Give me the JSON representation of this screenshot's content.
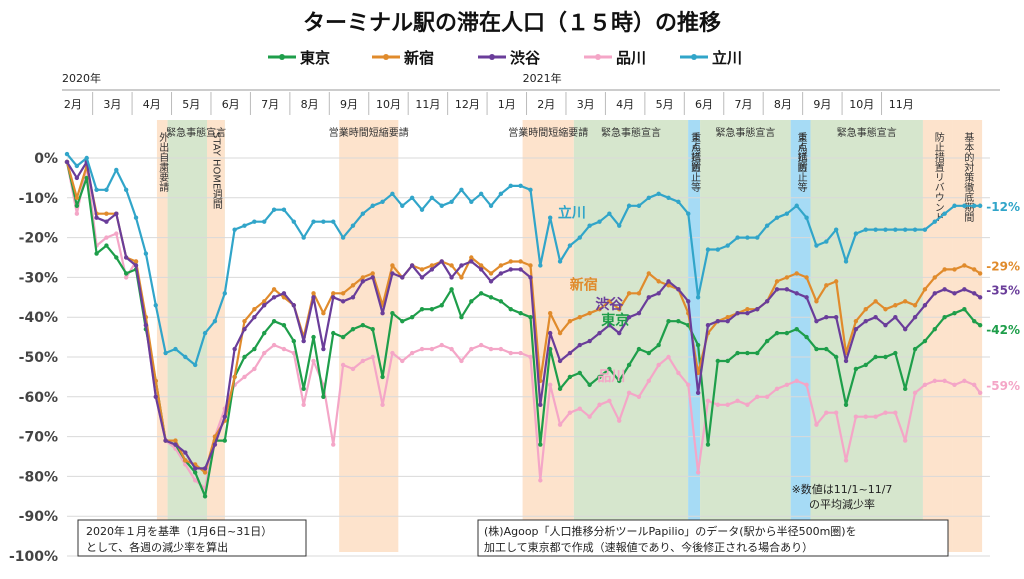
{
  "chart_data": {
    "type": "line",
    "title": "ターミナル駅の滞在人口（１５時）の推移",
    "ylim": [
      -100,
      5
    ],
    "yticks": [
      "0%",
      "-10%",
      "-20%",
      "-30%",
      "-40%",
      "-50%",
      "-60%",
      "-70%",
      "-80%",
      "-90%",
      "-100%"
    ],
    "year_labels": [
      "2020年",
      "2021年"
    ],
    "months": [
      "2月",
      "3月",
      "4月",
      "5月",
      "6月",
      "7月",
      "8月",
      "9月",
      "10月",
      "11月",
      "12月",
      "1月",
      "2月",
      "3月",
      "4月",
      "5月",
      "6月",
      "7月",
      "8月",
      "9月",
      "10月",
      "11月"
    ],
    "grid": true,
    "legend_position": "top",
    "periods": [
      {
        "label": "外出自粛要請",
        "color": "#fde3cc",
        "start": 3.28,
        "end": 3.55,
        "vertical": true
      },
      {
        "label": "緊急事態宣言",
        "color": "#d6e6cd",
        "start": 3.55,
        "end": 5.0,
        "vertical": false
      },
      {
        "label": "STAY HOME週間",
        "color": "#fde3cc",
        "start": 4.55,
        "end": 5.0,
        "vertical": true
      },
      {
        "label": "営業時間短縮要請",
        "color": "#fde3cc",
        "start": 7.9,
        "end": 9.4,
        "vertical": false
      },
      {
        "label": "営業時間短縮要請",
        "color": "#fde3cc",
        "start": 12.55,
        "end": 13.85,
        "vertical": false
      },
      {
        "label": "緊急事態宣言",
        "color": "#d6e6cd",
        "start": 13.85,
        "end": 16.75,
        "vertical": false
      },
      {
        "label": "重点措置",
        "color": "#a6dbf5",
        "start": 16.75,
        "end": 17.05,
        "vertical": true
      },
      {
        "label": "まん延防止等",
        "color": "#a6dbf5",
        "start": 16.75,
        "end": 17.05,
        "vertical": true
      },
      {
        "label": "緊急事態宣言",
        "color": "#d6e6cd",
        "start": 17.05,
        "end": 19.35,
        "vertical": false
      },
      {
        "label": "重点措置",
        "color": "#a6dbf5",
        "start": 19.35,
        "end": 19.85,
        "vertical": true
      },
      {
        "label": "まん延防止等",
        "color": "#a6dbf5",
        "start": 19.35,
        "end": 19.85,
        "vertical": true
      },
      {
        "label": "緊急事態宣言",
        "color": "#d6e6cd",
        "start": 19.85,
        "end": 22.7,
        "vertical": false
      },
      {
        "label": "防止措置リバウンド",
        "color": "#fde3cc",
        "start": 22.7,
        "end": 23.45,
        "vertical": true
      },
      {
        "label": "基本的対策徹底期間",
        "color": "#fde3cc",
        "start": 23.45,
        "end": 24.2,
        "vertical": true
      }
    ],
    "series": [
      {
        "name": "東京",
        "color": "#1e9e4a",
        "label_color": "#1e9e4a",
        "end_label": "-42%",
        "x": [
          1.0,
          1.25,
          1.5,
          1.75,
          2.0,
          2.25,
          2.5,
          2.75,
          3.0,
          3.25,
          3.5,
          3.75,
          4.0,
          4.25,
          4.5,
          4.75,
          5.0,
          5.25,
          5.5,
          5.75,
          6.0,
          6.25,
          6.5,
          6.75,
          7.0,
          7.25,
          7.5,
          7.75,
          8.0,
          8.25,
          8.5,
          8.75,
          9.0,
          9.25,
          9.5,
          9.75,
          10.0,
          10.25,
          10.5,
          10.75,
          11.0,
          11.25,
          11.5,
          11.75,
          12.0,
          12.25,
          12.5,
          12.75,
          13.0,
          13.25,
          13.5,
          13.75,
          14.0,
          14.25,
          14.5,
          14.75,
          15.0,
          15.25,
          15.5,
          15.75,
          16.0,
          16.25,
          16.5,
          16.75,
          17.0,
          17.25,
          17.5,
          17.75,
          18.0,
          18.25,
          18.5,
          18.75,
          19.0,
          19.25,
          19.5,
          19.75,
          20.0,
          20.25,
          20.5,
          20.75,
          21.0,
          21.25,
          21.5,
          21.75,
          22.0,
          22.25,
          22.5,
          22.75,
          23.0,
          23.25,
          23.5,
          23.75,
          24.0,
          24.15
        ],
        "y": [
          -1,
          -12,
          -5,
          -24,
          -22,
          -25,
          -29,
          -28,
          -43,
          -56,
          -71,
          -72,
          -76,
          -79,
          -85,
          -71,
          -71,
          -55,
          -50,
          -48,
          -44,
          -41,
          -42,
          -46,
          -58,
          -45,
          -60,
          -44,
          -45,
          -43,
          -42,
          -43,
          -55,
          -39,
          -41,
          -40,
          -38,
          -38,
          -37,
          -33,
          -40,
          -36,
          -34,
          -35,
          -36,
          -38,
          -39,
          -40,
          -72,
          -48,
          -58,
          -55,
          -54,
          -57,
          -55,
          -53,
          -56,
          -52,
          -48,
          -49,
          -47,
          -41,
          -41,
          -42,
          -47,
          -72,
          -51,
          -51,
          -49,
          -49,
          -49,
          -46,
          -44,
          -44,
          -43,
          -45,
          -48,
          -48,
          -50,
          -62,
          -53,
          -52,
          -50,
          -50,
          -49,
          -58,
          -48,
          -46,
          -43,
          -40,
          -39,
          -38,
          -41,
          -42
        ]
      },
      {
        "name": "新宿",
        "color": "#e08b2c",
        "label_color": "#e08b2c",
        "end_label": "-29%",
        "x": [
          1.0,
          1.25,
          1.5,
          1.75,
          2.0,
          2.25,
          2.5,
          2.75,
          3.0,
          3.25,
          3.5,
          3.75,
          4.0,
          4.25,
          4.5,
          4.75,
          5.0,
          5.25,
          5.5,
          5.75,
          6.0,
          6.25,
          6.5,
          6.75,
          7.0,
          7.25,
          7.5,
          7.75,
          8.0,
          8.25,
          8.5,
          8.75,
          9.0,
          9.25,
          9.5,
          9.75,
          10.0,
          10.25,
          10.5,
          10.75,
          11.0,
          11.25,
          11.5,
          11.75,
          12.0,
          12.25,
          12.5,
          12.75,
          13.0,
          13.25,
          13.5,
          13.75,
          14.0,
          14.25,
          14.5,
          14.75,
          15.0,
          15.25,
          15.5,
          15.75,
          16.0,
          16.25,
          16.5,
          16.75,
          17.0,
          17.25,
          17.5,
          17.75,
          18.0,
          18.25,
          18.5,
          18.75,
          19.0,
          19.25,
          19.5,
          19.75,
          20.0,
          20.25,
          20.5,
          20.75,
          21.0,
          21.25,
          21.5,
          21.75,
          22.0,
          22.25,
          22.5,
          22.75,
          23.0,
          23.25,
          23.5,
          23.75,
          24.0,
          24.15
        ],
        "y": [
          -1,
          -10,
          -2,
          -14,
          -14,
          -14,
          -25,
          -26,
          -40,
          -56,
          -71,
          -71,
          -76,
          -77,
          -79,
          -70,
          -66,
          -55,
          -41,
          -38,
          -36,
          -33,
          -35,
          -37,
          -45,
          -34,
          -39,
          -34,
          -34,
          -32,
          -30,
          -29,
          -37,
          -27,
          -30,
          -27,
          -28,
          -27,
          -26,
          -27,
          -30,
          -25,
          -27,
          -29,
          -27,
          -26,
          -26,
          -27,
          -56,
          -39,
          -44,
          -41,
          -40,
          -39,
          -38,
          -36,
          -38,
          -34,
          -34,
          -29,
          -31,
          -32,
          -33,
          -39,
          -54,
          -44,
          -41,
          -40,
          -39,
          -38,
          -38,
          -36,
          -31,
          -30,
          -29,
          -30,
          -36,
          -32,
          -31,
          -49,
          -41,
          -38,
          -36,
          -38,
          -37,
          -36,
          -37,
          -33,
          -30,
          -28,
          -28,
          -27,
          -28,
          -29
        ]
      },
      {
        "name": "渋谷",
        "color": "#6a3d9a",
        "label_color": "#6a3d9a",
        "end_label": "-35%",
        "x": [
          1.0,
          1.25,
          1.5,
          1.75,
          2.0,
          2.25,
          2.5,
          2.75,
          3.0,
          3.25,
          3.5,
          3.75,
          4.0,
          4.25,
          4.5,
          4.75,
          5.0,
          5.25,
          5.5,
          5.75,
          6.0,
          6.25,
          6.5,
          6.75,
          7.0,
          7.25,
          7.5,
          7.75,
          8.0,
          8.25,
          8.5,
          8.75,
          9.0,
          9.25,
          9.5,
          9.75,
          10.0,
          10.25,
          10.5,
          10.75,
          11.0,
          11.25,
          11.5,
          11.75,
          12.0,
          12.25,
          12.5,
          12.75,
          13.0,
          13.25,
          13.5,
          13.75,
          14.0,
          14.25,
          14.5,
          14.75,
          15.0,
          15.25,
          15.5,
          15.75,
          16.0,
          16.25,
          16.5,
          16.75,
          17.0,
          17.25,
          17.5,
          17.75,
          18.0,
          18.25,
          18.5,
          18.75,
          19.0,
          19.25,
          19.5,
          19.75,
          20.0,
          20.25,
          20.5,
          20.75,
          21.0,
          21.25,
          21.5,
          21.75,
          22.0,
          22.25,
          22.5,
          22.75,
          23.0,
          23.25,
          23.5,
          23.75,
          24.0,
          24.15
        ],
        "y": [
          -1,
          -5,
          -1,
          -15,
          -16,
          -14,
          -25,
          -27,
          -42,
          -60,
          -71,
          -72,
          -74,
          -78,
          -78,
          -72,
          -65,
          -48,
          -43,
          -40,
          -37,
          -35,
          -34,
          -37,
          -46,
          -35,
          -48,
          -35,
          -36,
          -35,
          -31,
          -30,
          -39,
          -29,
          -30,
          -27,
          -30,
          -28,
          -26,
          -30,
          -27,
          -26,
          -28,
          -31,
          -29,
          -28,
          -28,
          -30,
          -62,
          -44,
          -51,
          -49,
          -47,
          -46,
          -44,
          -42,
          -44,
          -40,
          -39,
          -35,
          -34,
          -31,
          -33,
          -36,
          -59,
          -42,
          -41,
          -41,
          -39,
          -39,
          -38,
          -36,
          -33,
          -33,
          -34,
          -35,
          -41,
          -40,
          -40,
          -51,
          -43,
          -41,
          -40,
          -42,
          -40,
          -43,
          -40,
          -37,
          -34,
          -33,
          -34,
          -33,
          -34,
          -35
        ]
      },
      {
        "name": "品川",
        "color": "#f4a6c7",
        "label_color": "#f4a6c7",
        "end_label": "-59%",
        "x": [
          1.0,
          1.25,
          1.5,
          1.75,
          2.0,
          2.25,
          2.5,
          2.75,
          3.0,
          3.25,
          3.5,
          3.75,
          4.0,
          4.25,
          4.5,
          4.75,
          5.0,
          5.25,
          5.5,
          5.75,
          6.0,
          6.25,
          6.5,
          6.75,
          7.0,
          7.25,
          7.5,
          7.75,
          8.0,
          8.25,
          8.5,
          8.75,
          9.0,
          9.25,
          9.5,
          9.75,
          10.0,
          10.25,
          10.5,
          10.75,
          11.0,
          11.25,
          11.5,
          11.75,
          12.0,
          12.25,
          12.5,
          12.75,
          13.0,
          13.25,
          13.5,
          13.75,
          14.0,
          14.25,
          14.5,
          14.75,
          15.0,
          15.25,
          15.5,
          15.75,
          16.0,
          16.25,
          16.5,
          16.75,
          17.0,
          17.25,
          17.5,
          17.75,
          18.0,
          18.25,
          18.5,
          18.75,
          19.0,
          19.25,
          19.5,
          19.75,
          20.0,
          20.25,
          20.5,
          20.75,
          21.0,
          21.25,
          21.5,
          21.75,
          22.0,
          22.25,
          22.5,
          22.75,
          23.0,
          23.25,
          23.5,
          23.75,
          24.0,
          24.15
        ],
        "y": [
          -1,
          -14,
          -2,
          -22,
          -20,
          -19,
          -30,
          -26,
          -42,
          -60,
          -71,
          -73,
          -77,
          -81,
          -83,
          -70,
          -63,
          -57,
          -55,
          -53,
          -49,
          -47,
          -48,
          -49,
          -62,
          -51,
          -57,
          -72,
          -52,
          -53,
          -51,
          -50,
          -62,
          -49,
          -51,
          -49,
          -48,
          -48,
          -47,
          -48,
          -51,
          -48,
          -47,
          -48,
          -48,
          -49,
          -49,
          -50,
          -81,
          -57,
          -67,
          -64,
          -63,
          -65,
          -62,
          -61,
          -66,
          -59,
          -60,
          -56,
          -52,
          -50,
          -54,
          -57,
          -79,
          -61,
          -62,
          -62,
          -61,
          -62,
          -60,
          -60,
          -58,
          -57,
          -56,
          -57,
          -67,
          -64,
          -64,
          -76,
          -65,
          -65,
          -65,
          -64,
          -64,
          -71,
          -59,
          -57,
          -56,
          -56,
          -57,
          -56,
          -57,
          -59
        ]
      },
      {
        "name": "立川",
        "color": "#31a5c9",
        "label_color": "#31a5c9",
        "end_label": "-12%",
        "x": [
          1.0,
          1.25,
          1.5,
          1.75,
          2.0,
          2.25,
          2.5,
          2.75,
          3.0,
          3.25,
          3.5,
          3.75,
          4.0,
          4.25,
          4.5,
          4.75,
          5.0,
          5.25,
          5.5,
          5.75,
          6.0,
          6.25,
          6.5,
          6.75,
          7.0,
          7.25,
          7.5,
          7.75,
          8.0,
          8.25,
          8.5,
          8.75,
          9.0,
          9.25,
          9.5,
          9.75,
          10.0,
          10.25,
          10.5,
          10.75,
          11.0,
          11.25,
          11.5,
          11.75,
          12.0,
          12.25,
          12.5,
          12.75,
          13.0,
          13.25,
          13.5,
          13.75,
          14.0,
          14.25,
          14.5,
          14.75,
          15.0,
          15.25,
          15.5,
          15.75,
          16.0,
          16.25,
          16.5,
          16.75,
          17.0,
          17.25,
          17.5,
          17.75,
          18.0,
          18.25,
          18.5,
          18.75,
          19.0,
          19.25,
          19.5,
          19.75,
          20.0,
          20.25,
          20.5,
          20.75,
          21.0,
          21.25,
          21.5,
          21.75,
          22.0,
          22.25,
          22.5,
          22.75,
          23.0,
          23.25,
          23.5,
          23.75,
          24.0,
          24.15
        ],
        "y": [
          1,
          -2,
          0,
          -8,
          -8,
          -3,
          -8,
          -15,
          -24,
          -37,
          -49,
          -48,
          -50,
          -52,
          -44,
          -41,
          -34,
          -18,
          -17,
          -16,
          -16,
          -13,
          -13,
          -16,
          -20,
          -16,
          -16,
          -16,
          -20,
          -17,
          -14,
          -12,
          -11,
          -9,
          -12,
          -10,
          -13,
          -10,
          -12,
          -11,
          -8,
          -11,
          -9,
          -12,
          -9,
          -7,
          -7,
          -8,
          -27,
          -15,
          -26,
          -22,
          -20,
          -17,
          -16,
          -14,
          -17,
          -12,
          -12,
          -10,
          -9,
          -10,
          -11,
          -14,
          -35,
          -23,
          -23,
          -22,
          -20,
          -20,
          -20,
          -17,
          -15,
          -14,
          -12,
          -15,
          -22,
          -21,
          -18,
          -26,
          -19,
          -18,
          -18,
          -18,
          -18,
          -18,
          -18,
          -18,
          -16,
          -14,
          -12,
          -12,
          -12,
          -12
        ]
      }
    ]
  },
  "notes": {
    "baseline_line1": "2020年１月を基準（1月6日~31日）",
    "baseline_line2": "として、各週の減少率を算出",
    "source_line1": "(株)Agoop「人口推移分析ツールPapilio」のデータ(駅から半径500m圏)を",
    "source_line2": "加工して東京都で作成（速報値であり、今後修正される場合あり）",
    "avg_line1": "※数値は11/1~11/7",
    "avg_line2": "の平均減少率"
  }
}
